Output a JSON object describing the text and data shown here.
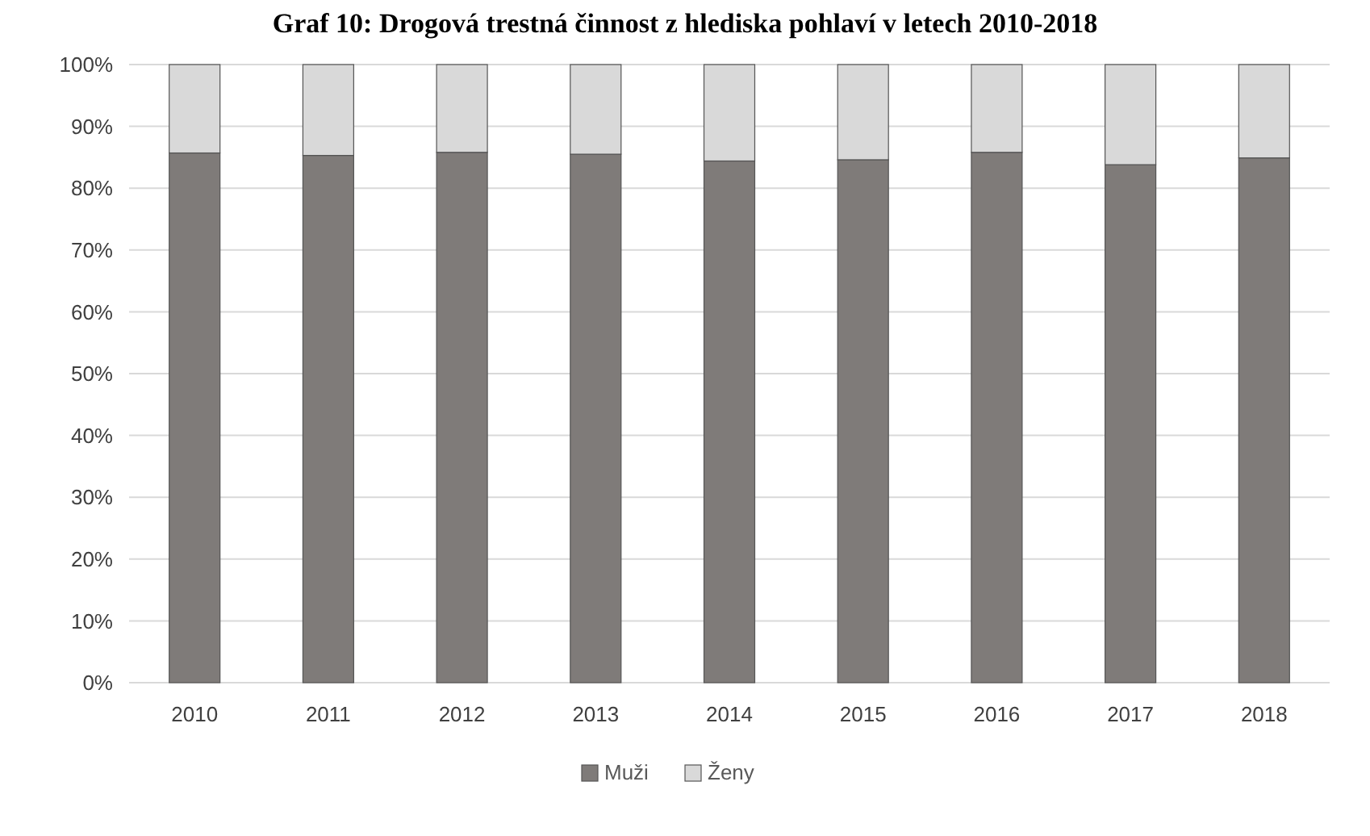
{
  "chart_data": {
    "type": "bar",
    "title": "Graf 10: Drogová trestná činnost z hlediska pohlaví v letech 2010-2018",
    "categories": [
      "2010",
      "2011",
      "2012",
      "2013",
      "2014",
      "2015",
      "2016",
      "2017",
      "2018"
    ],
    "series": [
      {
        "name": "Muži",
        "color": "#7f7b79",
        "values": [
          85.7,
          85.3,
          85.8,
          85.5,
          84.4,
          84.6,
          85.8,
          83.8,
          84.9
        ]
      },
      {
        "name": "Ženy",
        "color": "#d9d9d9",
        "values": [
          14.3,
          14.7,
          14.2,
          14.5,
          15.6,
          15.4,
          14.2,
          16.2,
          15.1
        ]
      }
    ],
    "stacked": true,
    "ylim": [
      0,
      100
    ],
    "yticks": [
      {
        "value": 0,
        "label": "0%"
      },
      {
        "value": 10,
        "label": "10%"
      },
      {
        "value": 20,
        "label": "20%"
      },
      {
        "value": 30,
        "label": "30%"
      },
      {
        "value": 40,
        "label": "40%"
      },
      {
        "value": 50,
        "label": "50%"
      },
      {
        "value": 60,
        "label": "60%"
      },
      {
        "value": 70,
        "label": "70%"
      },
      {
        "value": 80,
        "label": "80%"
      },
      {
        "value": 90,
        "label": "90%"
      },
      {
        "value": 100,
        "label": "100%"
      }
    ],
    "grid": "y",
    "legend": "bottom"
  }
}
